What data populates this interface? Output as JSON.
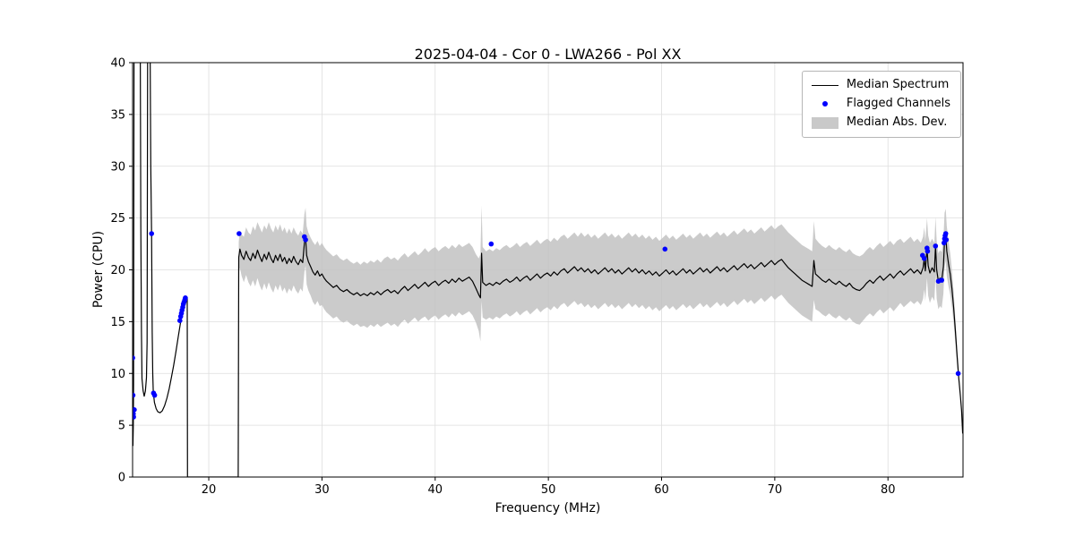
{
  "chart_data": {
    "type": "line",
    "title": "2025-04-04 - Cor 0 - LWA266 - Pol XX",
    "xlabel": "Frequency (MHz)",
    "ylabel": "Power (CPU)",
    "xlim": [
      13.27,
      86.63
    ],
    "ylim": [
      0,
      40
    ],
    "xticks": [
      20,
      30,
      40,
      50,
      60,
      70,
      80
    ],
    "yticks": [
      0,
      5,
      10,
      15,
      20,
      25,
      30,
      35,
      40
    ],
    "grid": true,
    "colors": {
      "line": "#000000",
      "flagged": "#0000ff",
      "band": "#c2c2c2",
      "grid": "#dedede",
      "frame": "#000000"
    },
    "legend": {
      "position": "upper right",
      "entries": [
        {
          "label": "Median Spectrum",
          "type": "line",
          "color": "#000000"
        },
        {
          "label": "Flagged Channels",
          "type": "dot",
          "color": "#0000ff"
        },
        {
          "label": "Median Abs. Dev.",
          "type": "patch",
          "color": "#c9c9c9"
        }
      ]
    },
    "median_spectrum": [
      [
        13.3,
        3,
        0
      ],
      [
        13.33,
        5,
        0
      ],
      [
        13.36,
        9,
        0
      ],
      [
        13.4,
        41,
        0
      ],
      [
        13.95,
        41,
        0
      ],
      [
        14.0,
        24,
        0
      ],
      [
        14.05,
        14,
        0
      ],
      [
        14.1,
        9.5,
        0
      ],
      [
        14.2,
        8.3,
        0
      ],
      [
        14.3,
        7.8,
        0
      ],
      [
        14.4,
        8.3,
        0
      ],
      [
        14.5,
        9.6,
        0
      ],
      [
        14.55,
        13,
        0
      ],
      [
        14.6,
        41,
        0
      ],
      [
        14.82,
        41,
        0
      ],
      [
        14.88,
        30,
        0
      ],
      [
        14.95,
        23.5,
        0
      ],
      [
        15.0,
        14,
        0
      ],
      [
        15.05,
        10,
        0
      ],
      [
        15.1,
        8.2,
        0
      ],
      [
        15.2,
        7.2,
        0
      ],
      [
        15.35,
        6.6,
        0
      ],
      [
        15.5,
        6.3,
        0
      ],
      [
        15.7,
        6.2,
        0
      ],
      [
        15.9,
        6.4,
        0
      ],
      [
        16.1,
        6.9,
        0
      ],
      [
        16.3,
        7.6,
        0
      ],
      [
        16.5,
        8.5,
        0
      ],
      [
        16.7,
        9.6,
        0
      ],
      [
        16.9,
        10.8,
        0
      ],
      [
        17.1,
        12.1,
        0
      ],
      [
        17.3,
        13.5,
        0
      ],
      [
        17.5,
        14.9,
        0
      ],
      [
        17.65,
        16.0,
        0
      ],
      [
        17.8,
        16.8,
        0
      ],
      [
        17.95,
        17.3,
        0
      ],
      [
        18.1,
        17.3,
        0
      ],
      [
        18.12,
        0,
        0
      ],
      [
        22.6,
        0,
        0
      ],
      [
        22.65,
        21.2,
        1.5
      ],
      [
        22.75,
        22.0,
        1.8
      ],
      [
        22.9,
        21.4,
        2.0
      ],
      [
        23.1,
        21.0,
        2.2
      ],
      [
        23.3,
        21.8,
        2.3
      ],
      [
        23.5,
        21.2,
        2.4
      ],
      [
        23.7,
        20.9,
        2.5
      ],
      [
        23.9,
        21.6,
        2.6
      ],
      [
        24.1,
        21.1,
        2.7
      ],
      [
        24.3,
        21.9,
        2.7
      ],
      [
        24.5,
        21.3,
        2.8
      ],
      [
        24.7,
        20.8,
        2.8
      ],
      [
        24.9,
        21.5,
        2.8
      ],
      [
        25.1,
        21.0,
        2.9
      ],
      [
        25.3,
        21.7,
        2.9
      ],
      [
        25.5,
        21.1,
        2.9
      ],
      [
        25.7,
        20.7,
        2.9
      ],
      [
        25.9,
        21.4,
        2.9
      ],
      [
        26.1,
        20.9,
        2.9
      ],
      [
        26.3,
        21.5,
        2.9
      ],
      [
        26.5,
        20.8,
        2.9
      ],
      [
        26.7,
        21.2,
        2.9
      ],
      [
        26.9,
        20.6,
        2.9
      ],
      [
        27.1,
        21.1,
        2.9
      ],
      [
        27.3,
        20.7,
        2.8
      ],
      [
        27.5,
        21.3,
        2.8
      ],
      [
        27.7,
        20.8,
        2.8
      ],
      [
        27.9,
        20.5,
        2.8
      ],
      [
        28.1,
        21.0,
        2.8
      ],
      [
        28.3,
        20.7,
        2.8
      ],
      [
        28.45,
        22.6,
        2.8
      ],
      [
        28.55,
        23.2,
        2.8
      ],
      [
        28.65,
        21.4,
        2.8
      ],
      [
        28.8,
        20.8,
        2.8
      ],
      [
        29.0,
        20.3,
        2.8
      ],
      [
        29.2,
        19.8,
        2.9
      ],
      [
        29.4,
        19.5,
        2.9
      ],
      [
        29.6,
        19.9,
        2.9
      ],
      [
        29.8,
        19.4,
        2.9
      ],
      [
        30.0,
        19.6,
        3.0
      ],
      [
        30.2,
        19.2,
        3.0
      ],
      [
        30.4,
        18.9,
        3.0
      ],
      [
        30.7,
        18.6,
        3.0
      ],
      [
        31.0,
        18.3,
        3.0
      ],
      [
        31.3,
        18.5,
        3.0
      ],
      [
        31.6,
        18.1,
        3.0
      ],
      [
        31.9,
        17.9,
        3.0
      ],
      [
        32.2,
        18.1,
        3.0
      ],
      [
        32.5,
        17.8,
        3.0
      ],
      [
        32.8,
        17.6,
        3.0
      ],
      [
        33.1,
        17.8,
        3.0
      ],
      [
        33.4,
        17.5,
        3.0
      ],
      [
        33.7,
        17.7,
        3.1
      ],
      [
        34.0,
        17.5,
        3.1
      ],
      [
        34.3,
        17.8,
        3.1
      ],
      [
        34.6,
        17.6,
        3.1
      ],
      [
        34.9,
        17.9,
        3.1
      ],
      [
        35.2,
        17.6,
        3.1
      ],
      [
        35.5,
        17.9,
        3.2
      ],
      [
        35.8,
        18.1,
        3.2
      ],
      [
        36.1,
        17.8,
        3.2
      ],
      [
        36.4,
        18.0,
        3.2
      ],
      [
        36.7,
        17.7,
        3.2
      ],
      [
        37.0,
        18.1,
        3.2
      ],
      [
        37.3,
        18.4,
        3.2
      ],
      [
        37.6,
        18.0,
        3.2
      ],
      [
        37.9,
        18.3,
        3.2
      ],
      [
        38.2,
        18.6,
        3.2
      ],
      [
        38.5,
        18.2,
        3.2
      ],
      [
        38.8,
        18.5,
        3.2
      ],
      [
        39.1,
        18.8,
        3.3
      ],
      [
        39.4,
        18.4,
        3.3
      ],
      [
        39.7,
        18.7,
        3.3
      ],
      [
        40.0,
        18.9,
        3.3
      ],
      [
        40.3,
        18.5,
        3.3
      ],
      [
        40.6,
        18.8,
        3.3
      ],
      [
        40.9,
        19.0,
        3.3
      ],
      [
        41.2,
        18.7,
        3.3
      ],
      [
        41.5,
        19.1,
        3.3
      ],
      [
        41.8,
        18.8,
        3.3
      ],
      [
        42.1,
        19.2,
        3.3
      ],
      [
        42.4,
        18.9,
        3.3
      ],
      [
        42.7,
        19.1,
        3.3
      ],
      [
        43.0,
        19.3,
        3.3
      ],
      [
        43.3,
        18.9,
        3.3
      ],
      [
        43.6,
        18.2,
        3.3
      ],
      [
        43.85,
        17.6,
        3.5
      ],
      [
        44.0,
        17.3,
        4.2
      ],
      [
        44.1,
        21.6,
        4.6
      ],
      [
        44.2,
        18.8,
        3.4
      ],
      [
        44.5,
        18.5,
        3.3
      ],
      [
        44.8,
        18.7,
        3.3
      ],
      [
        45.1,
        18.5,
        3.3
      ],
      [
        45.4,
        18.8,
        3.3
      ],
      [
        45.7,
        18.6,
        3.3
      ],
      [
        46.0,
        18.9,
        3.3
      ],
      [
        46.3,
        19.1,
        3.3
      ],
      [
        46.6,
        18.8,
        3.3
      ],
      [
        46.9,
        19.0,
        3.3
      ],
      [
        47.2,
        19.3,
        3.3
      ],
      [
        47.5,
        18.9,
        3.3
      ],
      [
        47.8,
        19.2,
        3.3
      ],
      [
        48.1,
        19.4,
        3.3
      ],
      [
        48.4,
        19.0,
        3.3
      ],
      [
        48.7,
        19.3,
        3.3
      ],
      [
        49.0,
        19.6,
        3.3
      ],
      [
        49.3,
        19.2,
        3.3
      ],
      [
        49.6,
        19.5,
        3.3
      ],
      [
        49.9,
        19.7,
        3.3
      ],
      [
        50.2,
        19.4,
        3.3
      ],
      [
        50.5,
        19.8,
        3.3
      ],
      [
        50.8,
        19.5,
        3.3
      ],
      [
        51.1,
        19.9,
        3.3
      ],
      [
        51.4,
        20.1,
        3.3
      ],
      [
        51.7,
        19.7,
        3.3
      ],
      [
        52.0,
        20.0,
        3.3
      ],
      [
        52.3,
        20.3,
        3.3
      ],
      [
        52.6,
        19.9,
        3.3
      ],
      [
        52.9,
        20.2,
        3.4
      ],
      [
        53.2,
        19.8,
        3.4
      ],
      [
        53.5,
        20.1,
        3.4
      ],
      [
        53.8,
        19.7,
        3.4
      ],
      [
        54.1,
        20.0,
        3.4
      ],
      [
        54.4,
        19.6,
        3.4
      ],
      [
        54.7,
        19.9,
        3.4
      ],
      [
        55.0,
        20.2,
        3.4
      ],
      [
        55.3,
        19.8,
        3.4
      ],
      [
        55.6,
        20.1,
        3.4
      ],
      [
        55.9,
        19.7,
        3.4
      ],
      [
        56.2,
        20.0,
        3.4
      ],
      [
        56.5,
        19.6,
        3.4
      ],
      [
        56.8,
        19.9,
        3.4
      ],
      [
        57.1,
        20.2,
        3.4
      ],
      [
        57.4,
        19.8,
        3.4
      ],
      [
        57.7,
        20.1,
        3.4
      ],
      [
        58.0,
        19.7,
        3.4
      ],
      [
        58.3,
        20.0,
        3.4
      ],
      [
        58.6,
        19.6,
        3.4
      ],
      [
        58.9,
        19.9,
        3.4
      ],
      [
        59.2,
        19.5,
        3.4
      ],
      [
        59.5,
        19.8,
        3.4
      ],
      [
        59.8,
        19.4,
        3.4
      ],
      [
        60.1,
        19.7,
        3.4
      ],
      [
        60.4,
        20.0,
        3.4
      ],
      [
        60.7,
        19.6,
        3.4
      ],
      [
        61.0,
        19.9,
        3.4
      ],
      [
        61.3,
        19.5,
        3.4
      ],
      [
        61.6,
        19.8,
        3.4
      ],
      [
        61.9,
        20.1,
        3.4
      ],
      [
        62.2,
        19.7,
        3.4
      ],
      [
        62.5,
        20.0,
        3.4
      ],
      [
        62.8,
        19.6,
        3.4
      ],
      [
        63.1,
        19.9,
        3.4
      ],
      [
        63.4,
        20.2,
        3.4
      ],
      [
        63.7,
        19.8,
        3.4
      ],
      [
        64.0,
        20.1,
        3.4
      ],
      [
        64.3,
        19.7,
        3.4
      ],
      [
        64.6,
        20.0,
        3.4
      ],
      [
        64.9,
        20.3,
        3.4
      ],
      [
        65.2,
        19.9,
        3.4
      ],
      [
        65.5,
        20.2,
        3.4
      ],
      [
        65.8,
        19.8,
        3.4
      ],
      [
        66.1,
        20.1,
        3.4
      ],
      [
        66.4,
        20.4,
        3.4
      ],
      [
        66.7,
        20.0,
        3.4
      ],
      [
        67.0,
        20.3,
        3.4
      ],
      [
        67.3,
        20.6,
        3.4
      ],
      [
        67.6,
        20.2,
        3.4
      ],
      [
        67.9,
        20.5,
        3.4
      ],
      [
        68.2,
        20.1,
        3.4
      ],
      [
        68.5,
        20.4,
        3.4
      ],
      [
        68.8,
        20.7,
        3.4
      ],
      [
        69.1,
        20.3,
        3.4
      ],
      [
        69.4,
        20.6,
        3.4
      ],
      [
        69.7,
        20.9,
        3.4
      ],
      [
        70.0,
        20.5,
        3.4
      ],
      [
        70.3,
        20.8,
        3.4
      ],
      [
        70.6,
        21.0,
        3.4
      ],
      [
        70.9,
        20.6,
        3.4
      ],
      [
        71.2,
        20.2,
        3.4
      ],
      [
        71.5,
        19.9,
        3.4
      ],
      [
        71.8,
        19.6,
        3.4
      ],
      [
        72.1,
        19.3,
        3.4
      ],
      [
        72.4,
        19.0,
        3.4
      ],
      [
        72.7,
        18.8,
        3.4
      ],
      [
        73.0,
        18.6,
        3.4
      ],
      [
        73.3,
        18.4,
        3.4
      ],
      [
        73.45,
        20.9,
        3.8
      ],
      [
        73.6,
        19.6,
        3.4
      ],
      [
        73.9,
        19.3,
        3.3
      ],
      [
        74.2,
        19.0,
        3.3
      ],
      [
        74.5,
        18.8,
        3.3
      ],
      [
        74.8,
        19.1,
        3.3
      ],
      [
        75.1,
        18.8,
        3.3
      ],
      [
        75.4,
        18.6,
        3.3
      ],
      [
        75.7,
        18.9,
        3.3
      ],
      [
        76.0,
        18.6,
        3.3
      ],
      [
        76.3,
        18.4,
        3.3
      ],
      [
        76.6,
        18.7,
        3.3
      ],
      [
        76.9,
        18.3,
        3.3
      ],
      [
        77.2,
        18.1,
        3.3
      ],
      [
        77.5,
        18.0,
        3.3
      ],
      [
        77.8,
        18.3,
        3.2
      ],
      [
        78.1,
        18.7,
        3.2
      ],
      [
        78.4,
        19.0,
        3.2
      ],
      [
        78.7,
        18.7,
        3.2
      ],
      [
        79.0,
        19.1,
        3.2
      ],
      [
        79.3,
        19.4,
        3.2
      ],
      [
        79.6,
        19.0,
        3.2
      ],
      [
        79.9,
        19.3,
        3.2
      ],
      [
        80.2,
        19.6,
        3.2
      ],
      [
        80.5,
        19.2,
        3.2
      ],
      [
        80.8,
        19.6,
        3.2
      ],
      [
        81.1,
        19.9,
        3.1
      ],
      [
        81.4,
        19.5,
        3.1
      ],
      [
        81.7,
        19.8,
        3.1
      ],
      [
        82.0,
        20.1,
        3.1
      ],
      [
        82.3,
        19.7,
        3.0
      ],
      [
        82.6,
        20.0,
        3.0
      ],
      [
        82.9,
        19.6,
        3.0
      ],
      [
        83.1,
        20.2,
        3.0
      ],
      [
        83.2,
        21.1,
        3.0
      ],
      [
        83.3,
        19.9,
        2.9
      ],
      [
        83.45,
        22.1,
        2.9
      ],
      [
        83.55,
        20.4,
        2.9
      ],
      [
        83.7,
        19.7,
        2.9
      ],
      [
        83.9,
        20.2,
        2.8
      ],
      [
        84.1,
        19.8,
        2.8
      ],
      [
        84.2,
        22.3,
        2.8
      ],
      [
        84.3,
        20.0,
        2.8
      ],
      [
        84.45,
        18.9,
        2.7
      ],
      [
        84.6,
        19.2,
        2.7
      ],
      [
        84.75,
        19.0,
        2.7
      ],
      [
        84.9,
        20.3,
        2.6
      ],
      [
        85.0,
        22.9,
        2.6
      ],
      [
        85.1,
        23.4,
        2.5
      ],
      [
        85.2,
        21.8,
        2.4
      ],
      [
        85.35,
        20.6,
        2.2
      ],
      [
        85.5,
        19.6,
        2.0
      ],
      [
        85.65,
        18.2,
        1.8
      ],
      [
        85.8,
        16.4,
        1.5
      ],
      [
        85.95,
        14.2,
        1.2
      ],
      [
        86.1,
        11.8,
        0.9
      ],
      [
        86.25,
        9.6,
        0.6
      ],
      [
        86.4,
        7.8,
        0
      ],
      [
        86.5,
        6.4,
        0
      ],
      [
        86.6,
        4.2,
        0
      ]
    ],
    "flagged_channels": [
      [
        13.28,
        11.5
      ],
      [
        13.3,
        7.9
      ],
      [
        13.31,
        6.4
      ],
      [
        13.33,
        6.1
      ],
      [
        13.36,
        5.8
      ],
      [
        13.42,
        6.5
      ],
      [
        14.95,
        23.5
      ],
      [
        15.12,
        8.1
      ],
      [
        15.22,
        7.9
      ],
      [
        17.45,
        15.1
      ],
      [
        17.52,
        15.5
      ],
      [
        17.58,
        15.8
      ],
      [
        17.64,
        16.1
      ],
      [
        17.7,
        16.4
      ],
      [
        17.76,
        16.7
      ],
      [
        17.82,
        16.9
      ],
      [
        17.88,
        17.1
      ],
      [
        17.93,
        17.3
      ],
      [
        22.68,
        23.5
      ],
      [
        28.45,
        23.2
      ],
      [
        28.55,
        22.9
      ],
      [
        44.95,
        22.5
      ],
      [
        60.3,
        22.0
      ],
      [
        83.05,
        21.4
      ],
      [
        83.2,
        21.1
      ],
      [
        83.45,
        22.1
      ],
      [
        83.5,
        21.8
      ],
      [
        84.2,
        22.3
      ],
      [
        84.45,
        18.9
      ],
      [
        84.75,
        19.0
      ],
      [
        84.95,
        22.6
      ],
      [
        85.0,
        23.0
      ],
      [
        85.05,
        23.3
      ],
      [
        85.1,
        23.5
      ],
      [
        85.15,
        22.9
      ],
      [
        86.2,
        10.0
      ]
    ]
  }
}
